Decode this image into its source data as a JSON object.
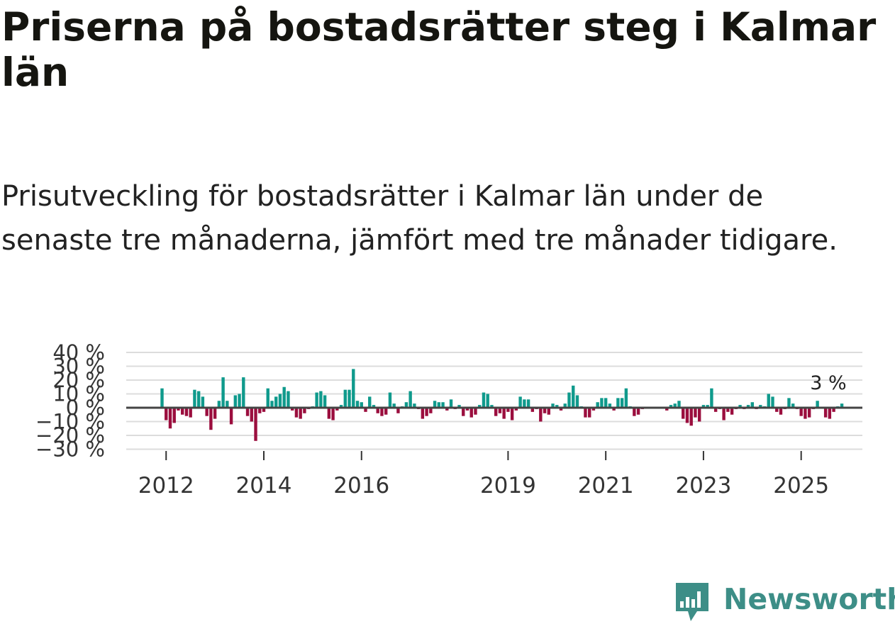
{
  "title": "Priserna på bostadsrätter steg i Kalmar län",
  "subtitle": "Prisutveckling för bostadsrätter i Kalmar län under de senaste tre månaderna, jämfört med tre månader tidigare.",
  "brand": {
    "name": "Newsworthy",
    "color": "#3d8e87"
  },
  "chart_data": {
    "type": "bar",
    "start": [
      2011,
      12
    ],
    "y_tick_labels": [
      "40 %",
      "30 %",
      "20 %",
      "10 %",
      "0 %",
      "−10 %",
      "−20 %",
      "−30 %"
    ],
    "y_ticks": [
      40,
      30,
      20,
      10,
      0,
      -10,
      -20,
      -30
    ],
    "ylim": [
      -30,
      40
    ],
    "x_tick_labels": [
      "2012",
      "2014",
      "2016",
      "2019",
      "2021",
      "2023",
      "2025"
    ],
    "x_tick_years": [
      2012,
      2014,
      2016,
      2019,
      2021,
      2023,
      2025
    ],
    "last_value_label": "3 %",
    "positive_color": "#0f9a8c",
    "negative_color": "#9b0e3e",
    "values": [
      14,
      -9,
      -15,
      -11,
      -2,
      -5,
      -6,
      -7,
      13,
      12,
      8,
      -6,
      -16,
      -8,
      5,
      22,
      5,
      -12,
      9,
      10,
      22,
      -6,
      -10,
      -24,
      -4,
      -3,
      14,
      5,
      8,
      10,
      15,
      12,
      -2,
      -7,
      -8,
      -4,
      -1,
      1,
      11,
      12,
      9,
      -8,
      -9,
      -2,
      2,
      13,
      13,
      28,
      5,
      4,
      -3,
      8,
      2,
      -4,
      -6,
      -5,
      11,
      3,
      -4,
      1,
      4,
      12,
      3,
      -1,
      -8,
      -6,
      -4,
      5,
      4,
      4,
      -2,
      6,
      -1,
      2,
      -6,
      -2,
      -7,
      -5,
      2,
      11,
      10,
      2,
      -6,
      -4,
      -8,
      -3,
      -9,
      -2,
      8,
      6,
      6,
      -3,
      -1,
      -10,
      -4,
      -5,
      3,
      2,
      -2,
      3,
      11,
      16,
      9,
      1,
      -7,
      -7,
      -2,
      4,
      7,
      7,
      3,
      -2,
      7,
      7,
      14,
      1,
      -6,
      -5,
      -1,
      0,
      0,
      0,
      0,
      0,
      -2,
      2,
      3,
      5,
      -8,
      -11,
      -13,
      -7,
      -10,
      2,
      2,
      14,
      -3,
      -1,
      -9,
      -3,
      -5,
      -1,
      2,
      -1,
      2,
      4,
      -1,
      2,
      1,
      10,
      8,
      -3,
      -5,
      -1,
      7,
      3,
      -1,
      -6,
      -8,
      -7,
      -1,
      5,
      0,
      -7,
      -8,
      -3,
      1,
      3
    ]
  }
}
